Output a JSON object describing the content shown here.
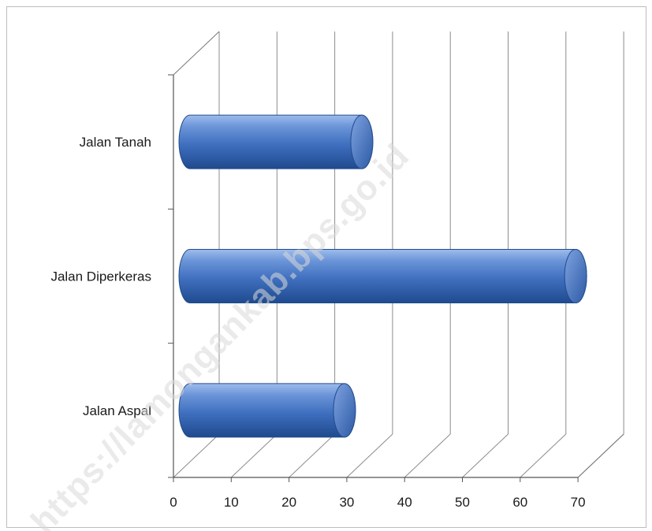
{
  "chart_data": {
    "type": "bar",
    "orientation": "horizontal",
    "style": "3d-cylinder",
    "categories": [
      "Jalan Aspal",
      "Jalan Diperkeras",
      "Jalan Tanah"
    ],
    "values": [
      27,
      67,
      30
    ],
    "xlim": [
      0,
      70
    ],
    "xticks": [
      "0",
      "10",
      "20",
      "30",
      "40",
      "50",
      "60",
      "70"
    ],
    "title": "",
    "xlabel": "",
    "ylabel": "",
    "grid": true,
    "legend": "none",
    "bar_color": "#3f6fbf"
  },
  "watermark": {
    "text": "https://lamongankab.bps.go.id"
  }
}
